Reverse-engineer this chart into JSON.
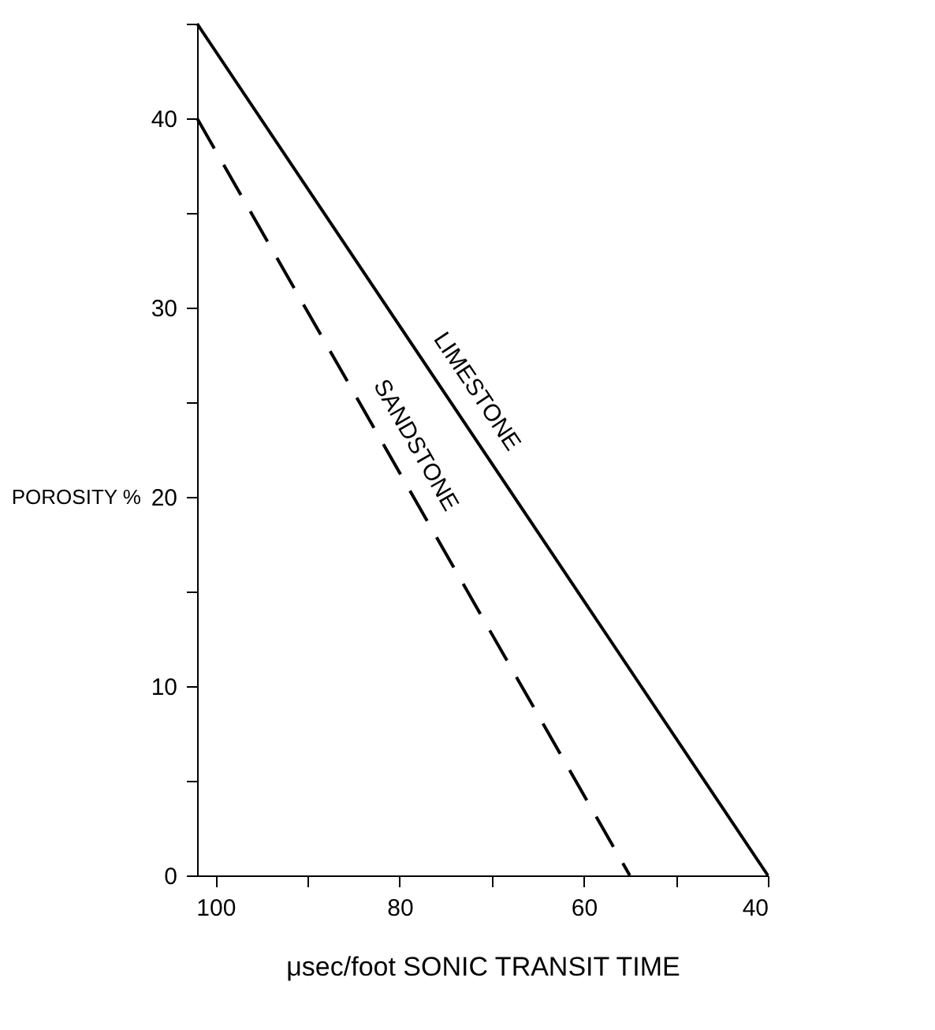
{
  "chart_data": {
    "type": "line",
    "xlabel": "μsec/foot   SONIC TRANSIT TIME",
    "ylabel": "POROSITY %",
    "xlim": [
      102,
      40
    ],
    "xticks": [
      100,
      {
        "value": 90,
        "label": null
      },
      80,
      {
        "value": 70,
        "label": null
      },
      60,
      {
        "value": 50,
        "label": null
      },
      40
    ],
    "ylim": [
      0,
      45
    ],
    "yticks": [
      0,
      {
        "value": 5,
        "label": null
      },
      10,
      {
        "value": 15,
        "label": null
      },
      20,
      {
        "value": 25,
        "label": null
      },
      30,
      {
        "value": 35,
        "label": null
      },
      40,
      {
        "value": 45,
        "label": null
      }
    ],
    "marker": "none",
    "series": [
      {
        "name": "LIMESTONE",
        "color": "#000000",
        "line_style": "solid",
        "x": [
          102,
          40
        ],
        "values": [
          45,
          0
        ]
      },
      {
        "name": "SANDSTONE",
        "color": "#000000",
        "line_style": "dashed",
        "x": [
          102,
          55
        ],
        "values": [
          40,
          0
        ]
      }
    ]
  }
}
